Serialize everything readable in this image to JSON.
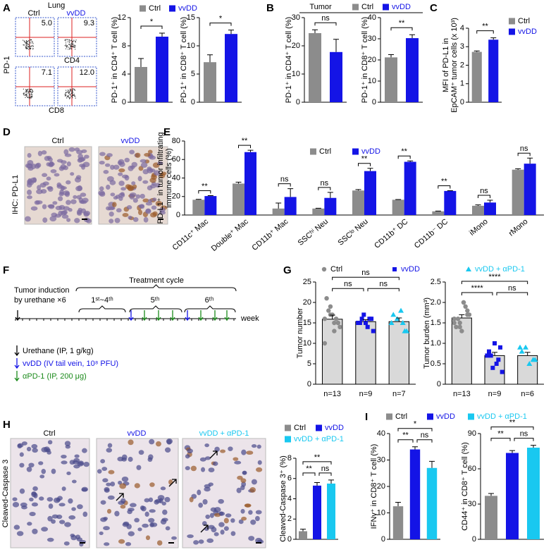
{
  "panel_labels": [
    "A",
    "B",
    "C",
    "D",
    "E",
    "F",
    "G",
    "H",
    "I"
  ],
  "flow": {
    "tissue": "Lung",
    "groups": [
      "Ctrl",
      "vvDD"
    ],
    "y_label": "PD-1",
    "row_labels": [
      "CD4",
      "CD8"
    ],
    "quadrants": [
      "5.0",
      "9.3",
      "7.1",
      "12.0"
    ]
  },
  "tumor_label": "Tumor",
  "ihc": {
    "groups": [
      "Ctrl",
      "vvDD"
    ],
    "label": "IHC: PD-L1"
  },
  "timeline": {
    "induction": [
      "Tumor induction",
      "by urethane ×6"
    ],
    "cycle": "Treatment cycle",
    "cycles": [
      "1ˢᵗ~4ᵗʰ",
      "5ᵗʰ",
      "6ᵗʰ"
    ],
    "unit": "week",
    "key": [
      "Urethane (IP, 1 g/kg)",
      "vvDD (IV tail vein, 10⁸ PFU)",
      "αPD-1 (IP, 200 μg)"
    ]
  },
  "caspase": {
    "groups": [
      "Ctrl",
      "vvDD",
      "vvDD + αPD-1"
    ],
    "label": "Cleaved-Caspase 3"
  },
  "legends": [
    {
      "names": [
        "Ctrl",
        "vvDD"
      ],
      "colors": [
        "#8c8c8c",
        "#1414e6"
      ]
    },
    {
      "names": [
        "Ctrl",
        "vvDD"
      ],
      "colors": [
        "#8c8c8c",
        "#1414e6"
      ]
    },
    {
      "names": [
        "Ctrl",
        "vvDD"
      ],
      "colors": [
        "#8c8c8c",
        "#1414e6"
      ]
    },
    {
      "names": [
        "Ctrl",
        "vvDD",
        "vvDD + αPD-1"
      ],
      "colors": [
        "#8c8c8c",
        "#1414e6",
        "#19c8f0"
      ],
      "markers": [
        "circle",
        "square",
        "triangle"
      ]
    },
    {
      "names": [
        "Ctrl",
        "vvDD",
        "vvDD + αPD-1"
      ],
      "colors": [
        "#8c8c8c",
        "#1414e6",
        "#19c8f0"
      ]
    },
    {
      "names": [
        "Ctrl",
        "vvDD",
        "vvDD + αPD-1"
      ],
      "colors": [
        "#8c8c8c",
        "#1414e6",
        "#19c8f0"
      ]
    }
  ],
  "chart_data": [
    {
      "type": "bar",
      "ylabel": [
        "PD-1⁺ in CD4⁺ T cell (%)"
      ],
      "values": [
        5.0,
        9.3
      ],
      "errors": [
        1.2,
        0.5
      ],
      "colors": [
        "#8c8c8c",
        "#1414e6"
      ],
      "ylim": [
        0,
        12
      ],
      "yticks": [
        0,
        4,
        8,
        12
      ],
      "significance": [
        "*"
      ]
    },
    {
      "type": "bar",
      "ylabel": [
        "PD-1⁺ in CD8⁺ T cell (%)"
      ],
      "values": [
        7.1,
        12.1
      ],
      "errors": [
        1.3,
        0.7
      ],
      "colors": [
        "#8c8c8c",
        "#1414e6"
      ],
      "ylim": [
        0,
        15
      ],
      "yticks": [
        0,
        5,
        10,
        15
      ],
      "significance": [
        "*"
      ]
    },
    {
      "type": "bar",
      "ylabel": [
        "PD-1⁺ in CD4⁺ T cell (%)"
      ],
      "values": [
        24.5,
        17.8
      ],
      "errors": [
        1.2,
        4.5
      ],
      "colors": [
        "#8c8c8c",
        "#1414e6"
      ],
      "ylim": [
        0,
        30
      ],
      "yticks": [
        0,
        10,
        20,
        30
      ],
      "significance": [
        "ns"
      ]
    },
    {
      "type": "bar",
      "ylabel": [
        "PD-1⁺ in CD8⁺ T cell (%)"
      ],
      "values": [
        21.2,
        30.3
      ],
      "errors": [
        1.3,
        1.6
      ],
      "colors": [
        "#8c8c8c",
        "#1414e6"
      ],
      "ylim": [
        0,
        40
      ],
      "yticks": [
        0,
        10,
        20,
        30,
        40
      ],
      "significance": [
        "**"
      ]
    },
    {
      "type": "bar",
      "ylabel": [
        "MFI of PD-L1 in",
        "EpCAM⁺ tumor cells (x 10³)"
      ],
      "values": [
        2.72,
        3.38
      ],
      "errors": [
        0.05,
        0.1
      ],
      "colors": [
        "#8c8c8c",
        "#1414e6"
      ],
      "ylim": [
        0,
        4
      ],
      "yticks": [
        0,
        1,
        2,
        3,
        4
      ],
      "significance": [
        "**"
      ]
    },
    {
      "type": "grouped_bar",
      "ylabel": [
        "PD-L1⁺ in tumor infiltrating",
        "immune cells (%)"
      ],
      "categories": [
        "CD11c⁺ Mac",
        "Double⁺ Mac",
        "CD11b⁺ Mac",
        "SSCʰⁱ Neu",
        "SSCˡᵒ Neu",
        "CD11b⁺ DC",
        "CD11b⁻ DC",
        "iMono",
        "rMono"
      ],
      "series": [
        {
          "name": "Ctrl",
          "color": "#8c8c8c",
          "values": [
            16.5,
            34,
            7,
            7,
            26.5,
            16.5,
            4,
            10,
            49
          ],
          "errors": [
            0.5,
            1.5,
            6,
            0.3,
            1,
            0.3,
            0.3,
            1,
            1
          ]
        },
        {
          "name": "vvDD",
          "color": "#1414e6",
          "values": [
            20.5,
            68,
            19.5,
            18.5,
            47.5,
            57.5,
            26,
            13.5,
            55.5
          ],
          "errors": [
            0.5,
            2,
            9,
            6,
            3,
            1,
            0.3,
            2.5,
            6
          ]
        }
      ],
      "ylim": [
        0,
        80
      ],
      "yticks": [
        0,
        20,
        40,
        60,
        80
      ],
      "significance": [
        "**",
        "**",
        "ns",
        "ns",
        "**",
        "**",
        "**",
        "ns",
        "ns"
      ]
    },
    {
      "type": "bar",
      "ylabel": [
        "Tumor number"
      ],
      "categories": [
        "n=13",
        "n=9",
        "n=7"
      ],
      "values": [
        15.9,
        15.3,
        15.3
      ],
      "errors": [
        1,
        0.5,
        0.9
      ],
      "bar_color": "#d9d9d9",
      "point_colors": [
        "#8c8c8c",
        "#1414e6",
        "#19c8f0"
      ],
      "markers": [
        "circle",
        "square",
        "triangle"
      ],
      "points": [
        [
          16,
          15,
          13,
          19,
          21,
          14,
          16,
          17,
          18,
          10,
          15,
          15,
          17
        ],
        [
          15,
          16,
          14,
          17,
          15,
          13,
          16,
          15,
          16
        ],
        [
          15,
          13,
          18,
          16,
          17,
          13,
          15
        ]
      ],
      "ylim": [
        0,
        25
      ],
      "yticks": [
        0,
        5,
        10,
        15,
        20,
        25
      ],
      "significance": [
        "ns",
        "ns",
        "ns"
      ]
    },
    {
      "type": "bar",
      "ylabel": [
        "Tumor burden (mm³)"
      ],
      "categories": [
        "n=13",
        "n=9",
        "n=6"
      ],
      "values": [
        1.62,
        0.7,
        0.7
      ],
      "errors": [
        0.08,
        0.08,
        0.08
      ],
      "bar_color": "#d9d9d9",
      "point_colors": [
        "#8c8c8c",
        "#1414e6",
        "#19c8f0"
      ],
      "markers": [
        "circle",
        "square",
        "triangle"
      ],
      "points": [
        [
          1.6,
          1.8,
          2.0,
          1.5,
          1.4,
          1.7,
          1.9,
          1.3,
          1.6,
          1.5,
          1.7,
          2.0,
          1.4
        ],
        [
          0.7,
          0.9,
          0.5,
          0.4,
          0.8,
          0.3,
          0.6,
          1.0,
          0.7
        ],
        [
          0.9,
          0.6,
          0.5,
          0.9,
          0.8,
          0.6
        ]
      ],
      "ylim": [
        0,
        2.5
      ],
      "yticks": [
        0,
        0.5,
        {
          "value": 1,
          "label": "1.0"
        },
        1.5,
        {
          "value": 2,
          "label": "2.0"
        },
        2.5
      ],
      "significance": [
        "****",
        "****",
        "ns"
      ]
    },
    {
      "type": "bar",
      "ylabel": [
        "Cleaved-Caspase 3⁺ (%)"
      ],
      "values": [
        0.8,
        5.3,
        5.5
      ],
      "errors": [
        0.2,
        0.3,
        0.35
      ],
      "colors": [
        "#8c8c8c",
        "#1414e6",
        "#19c8f0"
      ],
      "ylim": [
        0,
        8
      ],
      "yticks": [
        0,
        2,
        4,
        6,
        8
      ],
      "significance": [
        "**",
        "**",
        "ns"
      ]
    },
    {
      "type": "bar",
      "ylabel": [
        "IFNγ⁺ in CD8⁺ T cell (%)"
      ],
      "values": [
        12.5,
        34,
        27
      ],
      "errors": [
        1.5,
        1,
        2.5
      ],
      "colors": [
        "#8c8c8c",
        "#1414e6",
        "#19c8f0"
      ],
      "ylim": [
        0,
        40
      ],
      "yticks": [
        0,
        10,
        20,
        30,
        40
      ],
      "significance": [
        "*",
        "**",
        "ns"
      ]
    },
    {
      "type": "bar",
      "ylabel": [
        "CD44⁺ in CD8⁺ T cell (%)"
      ],
      "values": [
        37,
        73.5,
        78
      ],
      "errors": [
        2,
        2,
        2
      ],
      "colors": [
        "#8c8c8c",
        "#1414e6",
        "#19c8f0"
      ],
      "ylim": [
        0,
        90
      ],
      "yticks": [
        0,
        30,
        60,
        90
      ],
      "significance": [
        "**",
        "**",
        "ns"
      ]
    }
  ]
}
